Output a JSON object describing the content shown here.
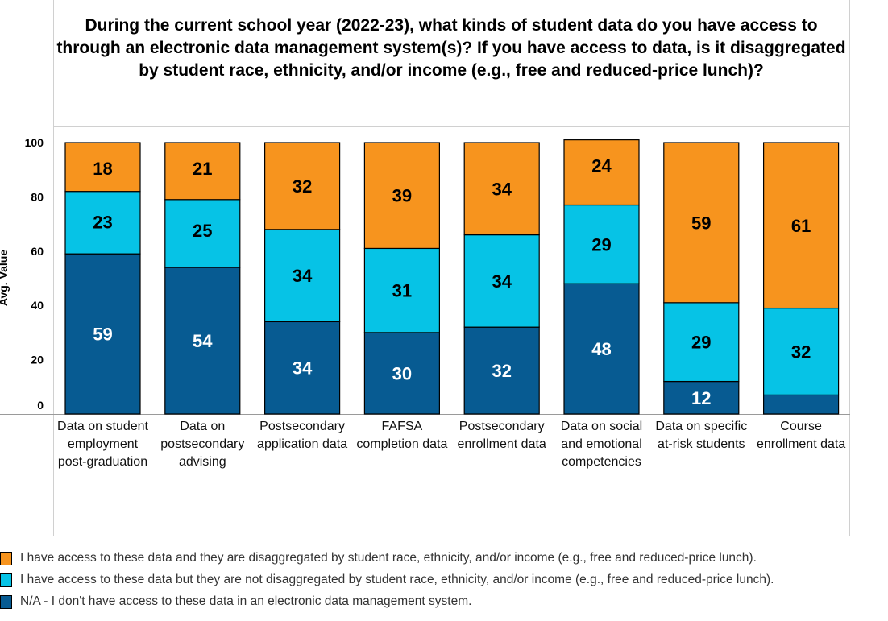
{
  "chart_data": {
    "type": "bar",
    "stacked": true,
    "title": "During the current school year (2022-23), what kinds of student data do you have access to through an electronic data management system(s)? If you have access to data, is it disaggregated by student race, ethnicity, and/or income (e.g., free and reduced-price lunch)?",
    "ylabel": "Avg. Value",
    "xlabel": "",
    "ylim": [
      0,
      100
    ],
    "yticks": [
      0,
      20,
      40,
      60,
      80,
      100
    ],
    "grid": false,
    "legend_position": "bottom",
    "categories": [
      "Data on student employment post-graduation",
      "Data on postsecondary advising",
      "Postsecondary application data",
      "FAFSA completion data",
      "Postsecondary enrollment data",
      "Data on social and emotional competencies",
      "Data on specific at-risk students",
      "Course enrollment data"
    ],
    "series": [
      {
        "name": "N/A - I don't have access to these data in an electronic data management system.",
        "color": "#075b92",
        "values": [
          59,
          54,
          34,
          30,
          32,
          48,
          12,
          7
        ],
        "labels": [
          "59",
          "54",
          "34",
          "30",
          "32",
          "48",
          "12",
          ""
        ]
      },
      {
        "name": "I have access to these data but they are not disaggregated by student race, ethnicity, and/or income (e.g., free and reduced-price lunch).",
        "color": "#06c3e6",
        "values": [
          23,
          25,
          34,
          31,
          34,
          29,
          29,
          32
        ],
        "labels": [
          "23",
          "25",
          "34",
          "31",
          "34",
          "29",
          "29",
          "32"
        ]
      },
      {
        "name": "I have access to these data and they are disaggregated by student race, ethnicity, and/or income (e.g., free and reduced-price lunch).",
        "color": "#f7941e",
        "values": [
          18,
          21,
          32,
          39,
          34,
          24,
          59,
          61
        ],
        "labels": [
          "18",
          "21",
          "32",
          "39",
          "34",
          "24",
          "59",
          "61"
        ]
      }
    ],
    "legend_order": [
      2,
      1,
      0
    ]
  }
}
